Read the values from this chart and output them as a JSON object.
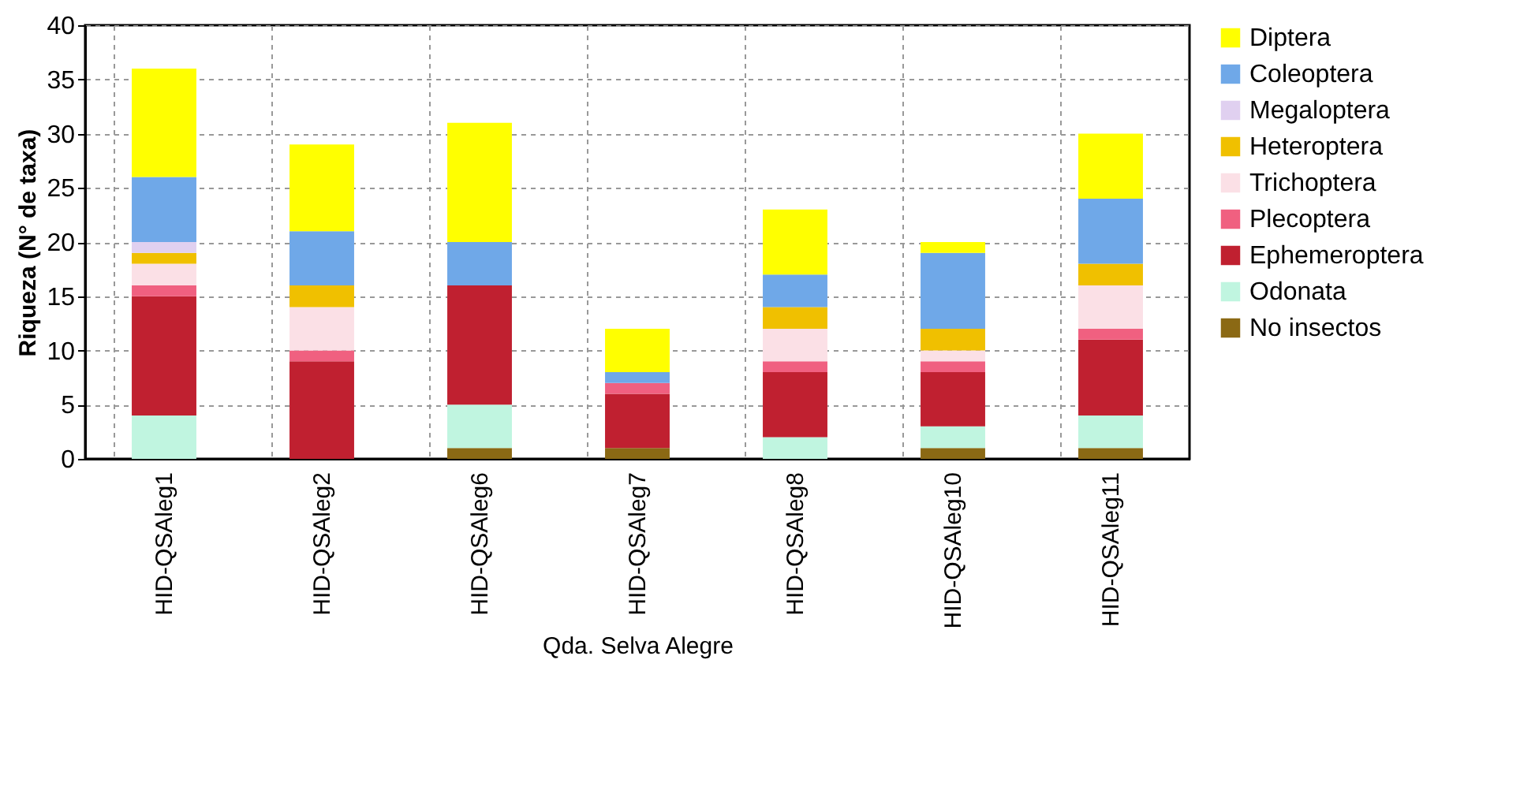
{
  "chart_data": {
    "type": "bar",
    "stacked": true,
    "xlabel": "Qda. Selva Alegre",
    "ylabel": "Riqueza (N° de taxa)",
    "categories": [
      "HID-QSAleg1",
      "HID-QSAleg2",
      "HID-QSAleg6",
      "HID-QSAleg7",
      "HID-QSAleg8",
      "HID-QSAleg10",
      "HID-QSAleg11"
    ],
    "series": [
      {
        "name": "No insectos",
        "color": "#8b6914",
        "values": [
          0,
          0,
          1,
          1,
          0,
          1,
          1
        ]
      },
      {
        "name": "Odonata",
        "color": "#c0f5e0",
        "values": [
          4,
          0,
          4,
          0,
          2,
          2,
          3
        ]
      },
      {
        "name": "Ephemeroptera",
        "color": "#c02030",
        "values": [
          11,
          9,
          11,
          5,
          6,
          5,
          7
        ]
      },
      {
        "name": "Plecoptera",
        "color": "#f06080",
        "values": [
          1,
          1,
          0,
          1,
          1,
          1,
          1
        ]
      },
      {
        "name": "Trichoptera",
        "color": "#fbe0e6",
        "values": [
          2,
          4,
          0,
          0,
          3,
          1,
          4
        ]
      },
      {
        "name": "Heteroptera",
        "color": "#f0c000",
        "values": [
          1,
          2,
          0,
          0,
          2,
          2,
          2
        ]
      },
      {
        "name": "Megaloptera",
        "color": "#e0d0f0",
        "values": [
          1,
          0,
          0,
          0,
          0,
          0,
          0
        ]
      },
      {
        "name": "Coleoptera",
        "color": "#6fa8e8",
        "values": [
          6,
          5,
          4,
          1,
          3,
          7,
          6
        ]
      },
      {
        "name": "Diptera",
        "color": "#ffff00",
        "values": [
          10,
          8,
          11,
          4,
          6,
          1,
          6
        ]
      }
    ],
    "ylim": [
      0,
      40
    ],
    "yticks": [
      0,
      5,
      10,
      15,
      20,
      25,
      30,
      35,
      40
    ],
    "grid": true,
    "legend": "right"
  }
}
